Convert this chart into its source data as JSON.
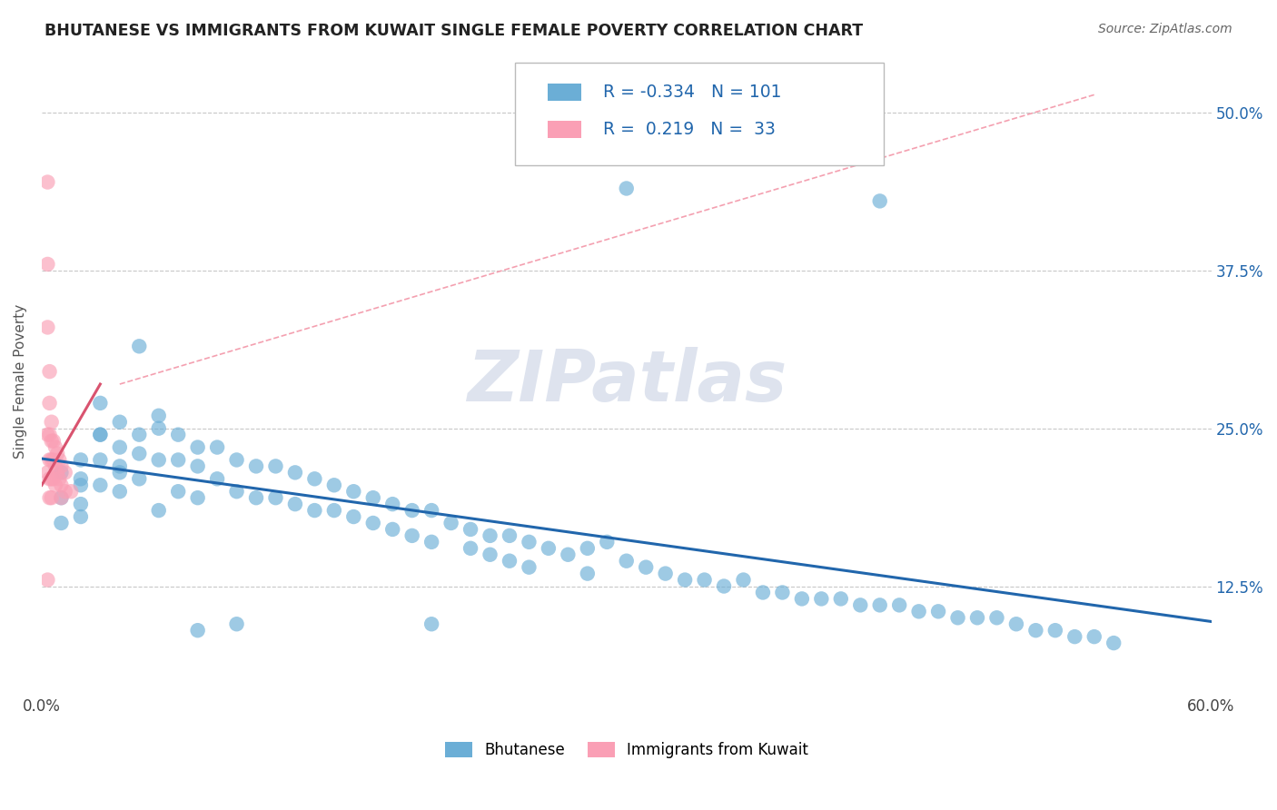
{
  "title": "BHUTANESE VS IMMIGRANTS FROM KUWAIT SINGLE FEMALE POVERTY CORRELATION CHART",
  "source": "Source: ZipAtlas.com",
  "ylabel": "Single Female Poverty",
  "x_min": 0.0,
  "x_max": 0.6,
  "y_min": 0.04,
  "y_max": 0.535,
  "y_ticks": [
    0.125,
    0.25,
    0.375,
    0.5
  ],
  "y_tick_labels": [
    "12.5%",
    "25.0%",
    "37.5%",
    "50.0%"
  ],
  "blue_color": "#6baed6",
  "pink_color": "#fa9fb5",
  "blue_line_color": "#2166ac",
  "pink_line_color": "#d9536f",
  "pink_dash_color": "#f4a0b0",
  "grid_color": "#c8c8c8",
  "watermark": "ZIPatlas",
  "legend_r1_val": "-0.334",
  "legend_n1_val": "101",
  "legend_r2_val": "0.219",
  "legend_n2_val": "33",
  "blue_x": [
    0.01,
    0.01,
    0.01,
    0.02,
    0.02,
    0.02,
    0.03,
    0.03,
    0.03,
    0.04,
    0.04,
    0.04,
    0.05,
    0.05,
    0.05,
    0.06,
    0.06,
    0.07,
    0.07,
    0.07,
    0.08,
    0.08,
    0.08,
    0.09,
    0.09,
    0.1,
    0.1,
    0.11,
    0.11,
    0.12,
    0.12,
    0.13,
    0.13,
    0.14,
    0.14,
    0.15,
    0.15,
    0.16,
    0.16,
    0.17,
    0.17,
    0.18,
    0.18,
    0.19,
    0.19,
    0.2,
    0.2,
    0.21,
    0.22,
    0.22,
    0.23,
    0.23,
    0.24,
    0.24,
    0.25,
    0.25,
    0.26,
    0.27,
    0.28,
    0.28,
    0.29,
    0.3,
    0.31,
    0.32,
    0.33,
    0.34,
    0.35,
    0.36,
    0.37,
    0.38,
    0.39,
    0.4,
    0.41,
    0.42,
    0.43,
    0.44,
    0.45,
    0.46,
    0.47,
    0.48,
    0.49,
    0.5,
    0.51,
    0.52,
    0.53,
    0.54,
    0.55,
    0.43,
    0.3,
    0.2,
    0.1,
    0.08,
    0.06,
    0.04,
    0.03,
    0.02,
    0.02,
    0.03,
    0.04,
    0.05,
    0.06
  ],
  "blue_y": [
    0.215,
    0.195,
    0.175,
    0.225,
    0.21,
    0.19,
    0.245,
    0.225,
    0.205,
    0.235,
    0.22,
    0.2,
    0.245,
    0.23,
    0.21,
    0.25,
    0.225,
    0.245,
    0.225,
    0.2,
    0.235,
    0.22,
    0.195,
    0.235,
    0.21,
    0.225,
    0.2,
    0.22,
    0.195,
    0.22,
    0.195,
    0.215,
    0.19,
    0.21,
    0.185,
    0.205,
    0.185,
    0.2,
    0.18,
    0.195,
    0.175,
    0.19,
    0.17,
    0.185,
    0.165,
    0.185,
    0.16,
    0.175,
    0.17,
    0.155,
    0.165,
    0.15,
    0.165,
    0.145,
    0.16,
    0.14,
    0.155,
    0.15,
    0.155,
    0.135,
    0.16,
    0.145,
    0.14,
    0.135,
    0.13,
    0.13,
    0.125,
    0.13,
    0.12,
    0.12,
    0.115,
    0.115,
    0.115,
    0.11,
    0.11,
    0.11,
    0.105,
    0.105,
    0.1,
    0.1,
    0.1,
    0.095,
    0.09,
    0.09,
    0.085,
    0.085,
    0.08,
    0.43,
    0.44,
    0.095,
    0.095,
    0.09,
    0.185,
    0.215,
    0.27,
    0.205,
    0.18,
    0.245,
    0.255,
    0.315,
    0.26
  ],
  "pink_x": [
    0.003,
    0.003,
    0.003,
    0.003,
    0.003,
    0.004,
    0.004,
    0.004,
    0.004,
    0.004,
    0.004,
    0.005,
    0.005,
    0.005,
    0.005,
    0.005,
    0.006,
    0.006,
    0.006,
    0.007,
    0.007,
    0.007,
    0.008,
    0.008,
    0.009,
    0.009,
    0.01,
    0.01,
    0.01,
    0.012,
    0.012,
    0.015,
    0.003
  ],
  "pink_y": [
    0.445,
    0.38,
    0.33,
    0.245,
    0.215,
    0.295,
    0.27,
    0.245,
    0.225,
    0.21,
    0.195,
    0.255,
    0.24,
    0.225,
    0.21,
    0.195,
    0.24,
    0.225,
    0.21,
    0.235,
    0.22,
    0.205,
    0.23,
    0.215,
    0.225,
    0.21,
    0.22,
    0.205,
    0.195,
    0.215,
    0.2,
    0.2,
    0.13
  ]
}
